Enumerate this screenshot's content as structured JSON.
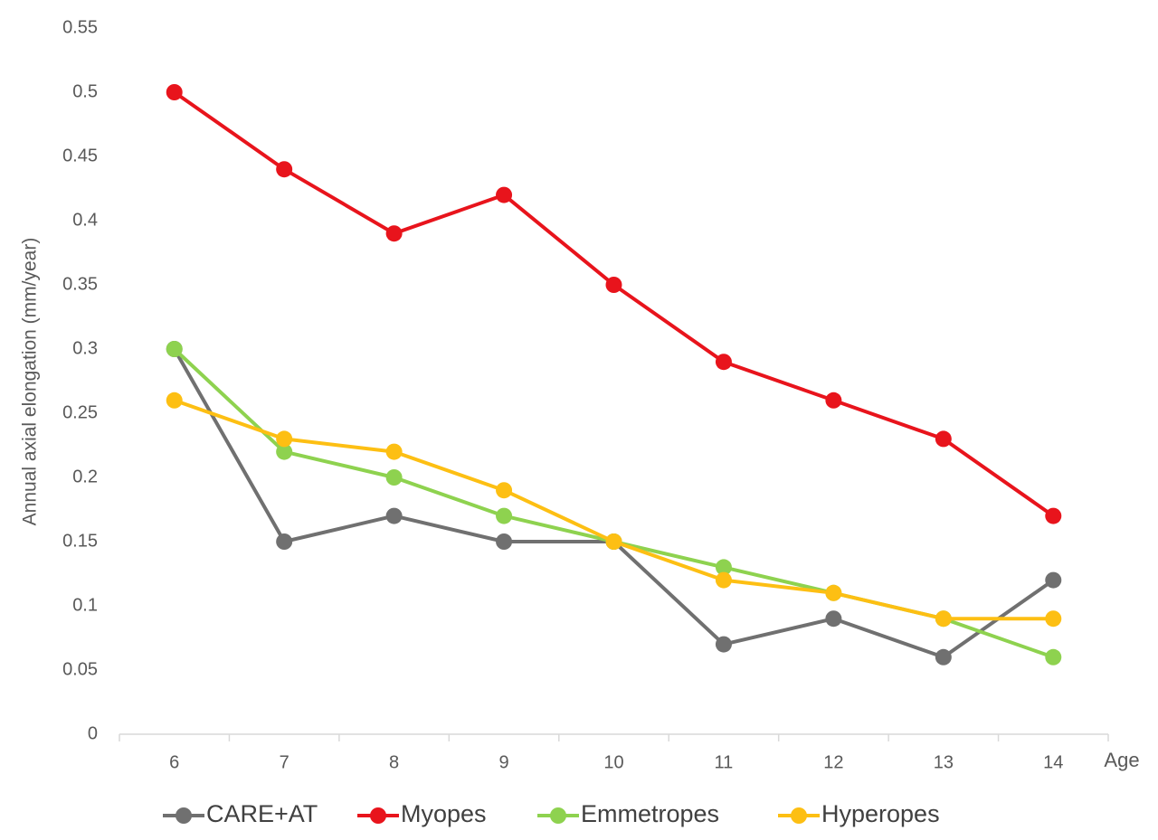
{
  "chart_data": {
    "type": "line",
    "x_label": "Age",
    "y_label": "Annual axial elongation (mm/year)",
    "categories": [
      "6",
      "7",
      "8",
      "9",
      "10",
      "11",
      "12",
      "13",
      "14"
    ],
    "series": [
      {
        "name": "CARE+AT",
        "color": "#707070",
        "values": [
          0.3,
          0.15,
          0.17,
          0.15,
          0.15,
          0.07,
          0.09,
          0.06,
          0.12
        ]
      },
      {
        "name": "Myopes",
        "color": "#e8141c",
        "values": [
          0.5,
          0.44,
          0.39,
          0.42,
          0.35,
          0.29,
          0.26,
          0.23,
          0.17
        ]
      },
      {
        "name": "Emmetropes",
        "color": "#8ed24f",
        "values": [
          0.3,
          0.22,
          0.2,
          0.17,
          0.15,
          0.13,
          0.11,
          0.09,
          0.06
        ]
      },
      {
        "name": "Hyperopes",
        "color": "#fdbf13",
        "values": [
          0.26,
          0.23,
          0.22,
          0.19,
          0.15,
          0.12,
          0.11,
          0.09,
          0.09
        ]
      }
    ],
    "ylim": [
      0,
      0.55
    ],
    "yticks": [
      0,
      0.05,
      0.1,
      0.15,
      0.2,
      0.25,
      0.3,
      0.35,
      0.4,
      0.45,
      0.5,
      0.55
    ],
    "grid": false,
    "legend": "bottom"
  }
}
